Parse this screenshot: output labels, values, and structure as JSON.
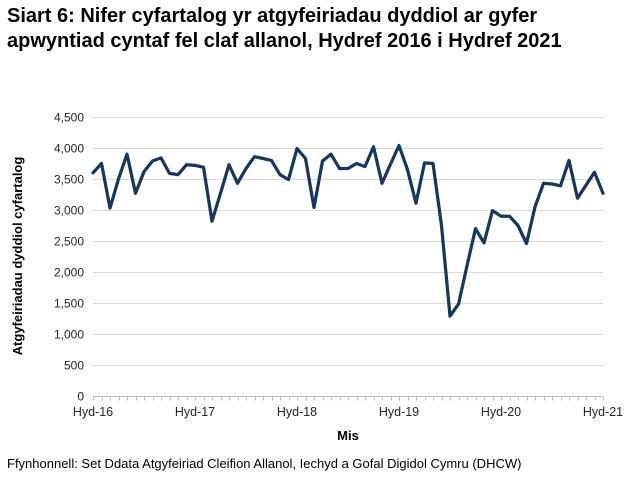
{
  "header": {
    "title": "Siart 6: Nifer cyfartalog yr atgyfeiriadau dyddiol ar gyfer apwyntiad cyntaf fel claf allanol, Hydref 2016 i Hydref 2021"
  },
  "footer": {
    "source": "Ffynhonnell: Set Ddata Atgyfeiriad Cleifion Allanol, Iechyd a Gofal Digidol Cymru (DHCW)"
  },
  "chart_data": {
    "type": "line",
    "title": "Siart 6: Nifer cyfartalog yr atgyfeiriadau dyddiol ar gyfer apwyntiad cyntaf fel claf allanol, Hydref 2016 i Hydref 2021",
    "xlabel": "Mis",
    "ylabel": "Atgyfeiriadau dyddiol cyfartalog",
    "x_range": [
      "Hydref 2016",
      "Hydref 2021"
    ],
    "x_tick_labels": [
      "Hyd-16",
      "Hyd-17",
      "Hyd-18",
      "Hyd-19",
      "Hyd-20",
      "Hyd-21"
    ],
    "x_tick_indices": [
      0,
      12,
      24,
      36,
      48,
      60
    ],
    "months_per_point": 1,
    "y_tick_labels": [
      "0",
      "500",
      "1,000",
      "1,500",
      "2,000",
      "2,500",
      "3,000",
      "3,500",
      "4,000",
      "4,500"
    ],
    "ylim": [
      0,
      4500
    ],
    "y_tick_step": 500,
    "grid": "horizontal-only",
    "legend": "none",
    "line_color": "#17375D",
    "gridline_color": "#D9D9D9",
    "axis_color": "#BFBFBF",
    "series": [
      {
        "name": "Atgyfeiriadau dyddiol cyfartalog",
        "values": [
          3600,
          3750,
          3030,
          3500,
          3900,
          3270,
          3620,
          3790,
          3840,
          3590,
          3570,
          3730,
          3720,
          3690,
          2820,
          3270,
          3730,
          3430,
          3670,
          3860,
          3830,
          3800,
          3570,
          3490,
          3990,
          3830,
          3040,
          3790,
          3900,
          3670,
          3670,
          3750,
          3700,
          4020,
          3430,
          3740,
          4040,
          3650,
          3110,
          3760,
          3750,
          2750,
          1290,
          1480,
          2100,
          2700,
          2470,
          2990,
          2900,
          2900,
          2750,
          2460,
          3050,
          3430,
          3420,
          3390,
          3800,
          3190,
          3400,
          3610,
          3270
        ]
      }
    ]
  }
}
